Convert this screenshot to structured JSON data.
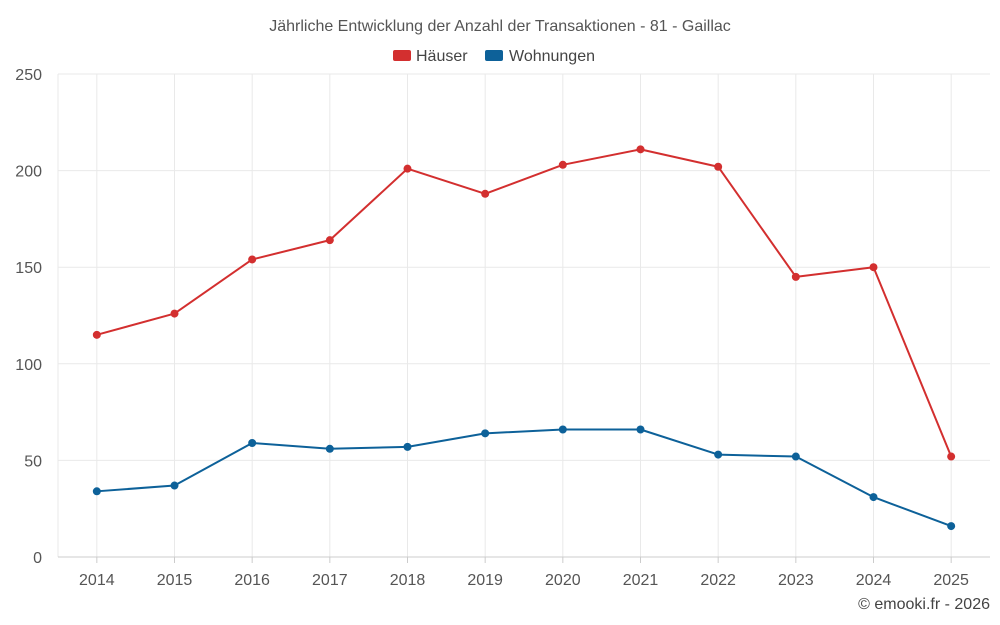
{
  "chart_data": {
    "type": "line",
    "title": "Jährliche Entwicklung der Anzahl der Transaktionen - 81 - Gaillac",
    "categories": [
      "2014",
      "2015",
      "2016",
      "2017",
      "2018",
      "2019",
      "2020",
      "2021",
      "2022",
      "2023",
      "2024",
      "2025"
    ],
    "series": [
      {
        "name": "Häuser",
        "color": "#d32f2f",
        "values": [
          115,
          126,
          154,
          164,
          201,
          188,
          203,
          211,
          202,
          145,
          150,
          52
        ]
      },
      {
        "name": "Wohnungen",
        "color": "#0d6199",
        "values": [
          34,
          37,
          59,
          56,
          57,
          64,
          66,
          66,
          53,
          52,
          31,
          16
        ]
      }
    ],
    "xlabel": "",
    "ylabel": "",
    "ylim": [
      0,
      250
    ],
    "yticks": [
      0,
      50,
      100,
      150,
      200,
      250
    ],
    "grid": true,
    "legend_position": "top-center"
  },
  "credit": "© emooki.fr - 2026",
  "colors": {
    "grid": "#e9e9e9",
    "text": "#555555",
    "axis": "#cccccc"
  }
}
